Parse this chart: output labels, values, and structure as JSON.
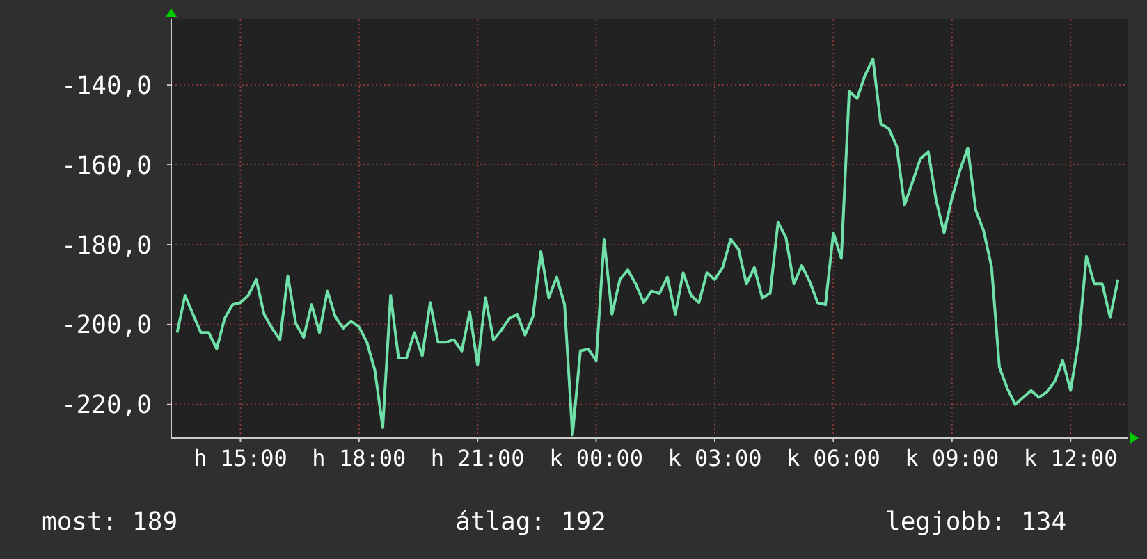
{
  "chart_data": {
    "type": "line",
    "color": "#6ee0a8",
    "grid": true,
    "ylim": [
      -228.4,
      -123.6
    ],
    "yticks": [
      {
        "value": -220,
        "label": "-220,0"
      },
      {
        "value": -200,
        "label": "-200,0"
      },
      {
        "value": -180,
        "label": "-180,0"
      },
      {
        "value": -160,
        "label": "-160,0"
      },
      {
        "value": -140,
        "label": "-140,0"
      }
    ],
    "categories": [
      null,
      null,
      null,
      null,
      null,
      null,
      null,
      null,
      "h 15:00",
      null,
      null,
      null,
      null,
      null,
      null,
      null,
      null,
      null,
      null,
      null,
      null,
      null,
      null,
      "h 18:00",
      null,
      null,
      null,
      null,
      null,
      null,
      null,
      null,
      null,
      null,
      null,
      null,
      null,
      null,
      "h 21:00",
      null,
      null,
      null,
      null,
      null,
      null,
      null,
      null,
      null,
      null,
      null,
      null,
      null,
      null,
      "k 00:00",
      null,
      null,
      null,
      null,
      null,
      null,
      null,
      null,
      null,
      null,
      null,
      null,
      null,
      null,
      "k 03:00",
      null,
      null,
      null,
      null,
      null,
      null,
      null,
      null,
      null,
      null,
      null,
      null,
      null,
      null,
      "k 06:00",
      null,
      null,
      null,
      null,
      null,
      null,
      null,
      null,
      null,
      null,
      null,
      null,
      null,
      null,
      "k 09:00",
      null,
      null,
      null,
      null,
      null,
      null,
      null,
      null,
      null,
      null,
      null,
      null,
      null,
      null,
      "k 12:00",
      null,
      null,
      null,
      null,
      null,
      null
    ],
    "values": [
      -202,
      -192.7,
      -197.4,
      -202,
      -202,
      -206.1,
      -198.5,
      -195,
      -194.5,
      -192.7,
      -188.7,
      -197.4,
      -200.9,
      -203.8,
      -187.8,
      -199.7,
      -203.2,
      -195,
      -202,
      -191.6,
      -198,
      -200.9,
      -199.1,
      -200.6,
      -204.4,
      -211.4,
      -225.8,
      -192.7,
      -208.4,
      -208.4,
      -202,
      -207.8,
      -194.5,
      -204.4,
      -204.4,
      -203.8,
      -206.6,
      -196.8,
      -210.1,
      -193.3,
      -203.8,
      -201.4,
      -198.5,
      -197.4,
      -202.6,
      -198,
      -181.7,
      -193.3,
      -188.1,
      -195,
      -227.6,
      -206.6,
      -206.1,
      -209,
      -178.8,
      -197.4,
      -188.7,
      -186.3,
      -189.8,
      -194.5,
      -191.6,
      -192.2,
      -188.1,
      -197.4,
      -187,
      -192.7,
      -194.5,
      -187,
      -188.7,
      -185.7,
      -178.6,
      -181.1,
      -189.8,
      -185.7,
      -193.3,
      -192.2,
      -174.4,
      -178.2,
      -189.8,
      -185.2,
      -189.2,
      -194.5,
      -195,
      -177,
      -183.4,
      -141.6,
      -143.4,
      -137.6,
      -133.5,
      -149.8,
      -150.9,
      -155.3,
      -170.1,
      -164.3,
      -158.5,
      -156.7,
      -168.9,
      -177,
      -168.3,
      -161.4,
      -155.8,
      -171.3,
      -176.5,
      -185.5,
      -210.7,
      -216,
      -220,
      -218.2,
      -216.5,
      -218.2,
      -216.9,
      -214.2,
      -209,
      -216.5,
      -204.4,
      -182.9,
      -189.8,
      -189.8,
      -198.2,
      -188.7
    ],
    "annotations": [
      "most: 189",
      "átlag: 192",
      "legjobb: 134"
    ]
  }
}
